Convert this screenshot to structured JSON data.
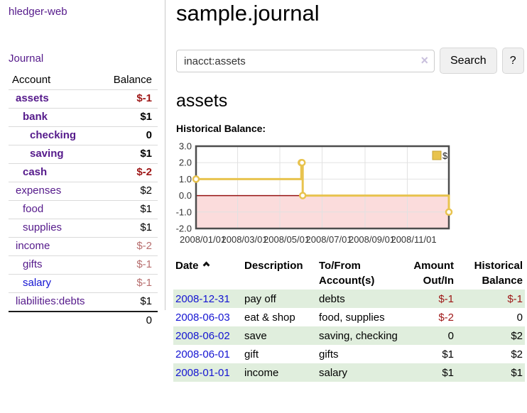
{
  "app": {
    "title": "hledger-web"
  },
  "sidebar": {
    "journal_link": "Journal",
    "table": {
      "headers": {
        "account": "Account",
        "balance": "Balance"
      },
      "rows": [
        {
          "name": "assets",
          "balance": "$-1",
          "depth": 1,
          "bold": true,
          "link_color": "purple",
          "balance_color": "negative-strong"
        },
        {
          "name": "bank",
          "balance": "$1",
          "depth": 2,
          "bold": true,
          "link_color": "purple",
          "balance_color": "normal"
        },
        {
          "name": "checking",
          "balance": "0",
          "depth": 3,
          "bold": true,
          "link_color": "purple",
          "balance_color": "normal"
        },
        {
          "name": "saving",
          "balance": "$1",
          "depth": 3,
          "bold": true,
          "link_color": "purple",
          "balance_color": "normal"
        },
        {
          "name": "cash",
          "balance": "$-2",
          "depth": 2,
          "bold": true,
          "link_color": "purple",
          "balance_color": "negative-strong"
        },
        {
          "name": "expenses",
          "balance": "$2",
          "depth": 1,
          "bold": false,
          "link_color": "purple",
          "balance_color": "normal"
        },
        {
          "name": "food",
          "balance": "$1",
          "depth": 2,
          "bold": false,
          "link_color": "purple",
          "balance_color": "normal"
        },
        {
          "name": "supplies",
          "balance": "$1",
          "depth": 2,
          "bold": false,
          "link_color": "purple",
          "balance_color": "normal"
        },
        {
          "name": "income",
          "balance": "$-2",
          "depth": 1,
          "bold": false,
          "link_color": "purple",
          "balance_color": "negative-muted"
        },
        {
          "name": "gifts",
          "balance": "$-1",
          "depth": 2,
          "bold": false,
          "link_color": "purple",
          "balance_color": "negative-muted"
        },
        {
          "name": "salary",
          "balance": "$-1",
          "depth": 2,
          "bold": false,
          "link_color": "blue",
          "balance_color": "negative-muted"
        },
        {
          "name": "liabilities:debts",
          "balance": "$1",
          "depth": 1,
          "bold": false,
          "link_color": "purple",
          "balance_color": "normal"
        }
      ],
      "total": "0"
    }
  },
  "header": {
    "title": "sample.journal"
  },
  "search": {
    "value": "inacct:assets",
    "clear_icon": "×",
    "button_label": "Search",
    "help_label": "?"
  },
  "main": {
    "account_title": "assets",
    "chart_label": "Historical Balance:"
  },
  "chart_data": {
    "type": "line",
    "style": "step-after",
    "title": "Historical Balance:",
    "x_type": "date",
    "series": [
      {
        "name": "$",
        "color": "#e8c34e",
        "points": [
          [
            "2008-01-01",
            1
          ],
          [
            "2008-06-01",
            2
          ],
          [
            "2008-06-02",
            2
          ],
          [
            "2008-06-03",
            0
          ],
          [
            "2008-12-31",
            -1
          ]
        ]
      }
    ],
    "x_range": [
      "2008-01-01",
      "2008-12-31"
    ],
    "ylim": [
      -2,
      3
    ],
    "yticks": [
      {
        "value": 3,
        "label": "3.0"
      },
      {
        "value": 2,
        "label": "2.0"
      },
      {
        "value": 1,
        "label": "1.0"
      },
      {
        "value": 0,
        "label": "0.0"
      },
      {
        "value": -1,
        "label": "-1.0"
      },
      {
        "value": -2,
        "label": "-2.0"
      }
    ],
    "xticks": [
      {
        "date": "2008-01-01",
        "label": "2008/01/01"
      },
      {
        "date": "2008-03-01",
        "label": "2008/03/01"
      },
      {
        "date": "2008-05-01",
        "label": "2008/05/01"
      },
      {
        "date": "2008-07-01",
        "label": "2008/07/01"
      },
      {
        "date": "2008-09-01",
        "label": "2008/09/01"
      },
      {
        "date": "2008-11-01",
        "label": "2008/11/01"
      }
    ],
    "legend": {
      "label": "$",
      "position": "top-right",
      "swatch_color": "#e8c34e"
    },
    "grid": true,
    "marker": {
      "shape": "circle",
      "fill": "#ffffff"
    },
    "negative_region_color": "#fbdcdc",
    "zero_line_color": "#961414",
    "border_color": "#4d4d4d",
    "gridline_color": "#e2e2e2"
  },
  "register": {
    "headers": {
      "date": "Date",
      "description": "Description",
      "accounts": "To/From Account(s)",
      "amount": "Amount Out/In",
      "balance": "Historical Balance"
    },
    "sort_icon": "chevron-up",
    "rows": [
      {
        "date": "2008-12-31",
        "description": "pay off",
        "accounts": "debts",
        "amount": "$-1",
        "amount_negative": true,
        "balance": "$-1",
        "balance_negative": true
      },
      {
        "date": "2008-06-03",
        "description": "eat & shop",
        "accounts": "food, supplies",
        "amount": "$-2",
        "amount_negative": true,
        "balance": "0",
        "balance_negative": false
      },
      {
        "date": "2008-06-02",
        "description": "save",
        "accounts": "saving, checking",
        "amount": "0",
        "amount_negative": false,
        "balance": "$2",
        "balance_negative": false
      },
      {
        "date": "2008-06-01",
        "description": "gift",
        "accounts": "gifts",
        "amount": "$1",
        "amount_negative": false,
        "balance": "$2",
        "balance_negative": false
      },
      {
        "date": "2008-01-01",
        "description": "income",
        "accounts": "salary",
        "amount": "$1",
        "amount_negative": false,
        "balance": "$1",
        "balance_negative": false
      }
    ]
  },
  "colors": {
    "link_purple": "#551a8b",
    "link_blue": "#1414d2",
    "negative_strong": "#9e1616",
    "negative_muted": "#b76e6e",
    "row_stripe_green": "#e0eedd",
    "chart_line_gold": "#e8c34e",
    "chart_negative_pink": "#fbdcdc",
    "chart_zero_line": "#961414"
  }
}
